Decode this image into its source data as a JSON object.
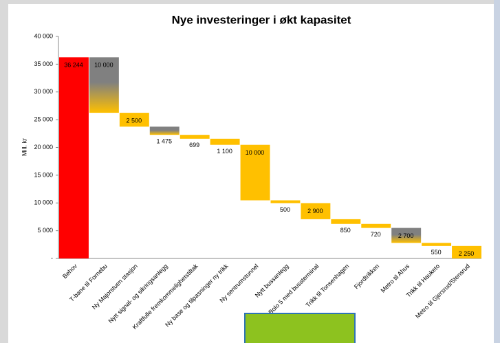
{
  "chart_data": {
    "type": "waterfall",
    "title": "Nye investeringer i økt kapasitet",
    "y_label": "Mill. kr",
    "categories": [
      "Behov",
      "T-bane til Fornebu",
      "Ny Majorstuen stasjon",
      "Nytt signal- og sikringsanlegg",
      "Kraftfulle fremkommelighetstiltak",
      "Ny base og tilpasninger ny trikk",
      "Ny sentrumstunnel",
      "Nytt bussanlegg",
      "Bolo 5 med bussterminal",
      "Trikk til Tonsenhagen",
      "Fjordtrikken",
      "Metro til Ahus",
      "Trikk til Hauketo",
      "Metro til Gjersrud/Stensrud"
    ],
    "values": [
      36244,
      10000,
      2500,
      1475,
      699,
      1100,
      10000,
      500,
      2900,
      850,
      720,
      2700,
      550,
      2250
    ],
    "value_labels": [
      "36 244",
      "10 000",
      "2 500",
      "1 475",
      "699",
      "1 100",
      "10 000",
      "500",
      "2 900",
      "850",
      "720",
      "2 700",
      "550",
      "2 250"
    ],
    "colors": [
      "#ff0000",
      "#808080",
      "#ffc000",
      "#808080",
      "#ffc000",
      "#ffc000",
      "#ffc000",
      "#ffc000",
      "#ffc000",
      "#ffc000",
      "#ffc000",
      "#808080",
      "#ffc000",
      "#ffc000"
    ],
    "base_color": "#ffc000",
    "ylim": [
      0,
      40000
    ],
    "yticks": [
      {
        "value": 0,
        "label": "-"
      },
      {
        "value": 5000,
        "label": "5 000"
      },
      {
        "value": 10000,
        "label": "10 000"
      },
      {
        "value": 15000,
        "label": "15 000"
      },
      {
        "value": 20000,
        "label": "20 000"
      },
      {
        "value": 25000,
        "label": "25 000"
      },
      {
        "value": 30000,
        "label": "30 000"
      },
      {
        "value": 35000,
        "label": "35 000"
      },
      {
        "value": 40000,
        "label": "40 000"
      }
    ]
  }
}
